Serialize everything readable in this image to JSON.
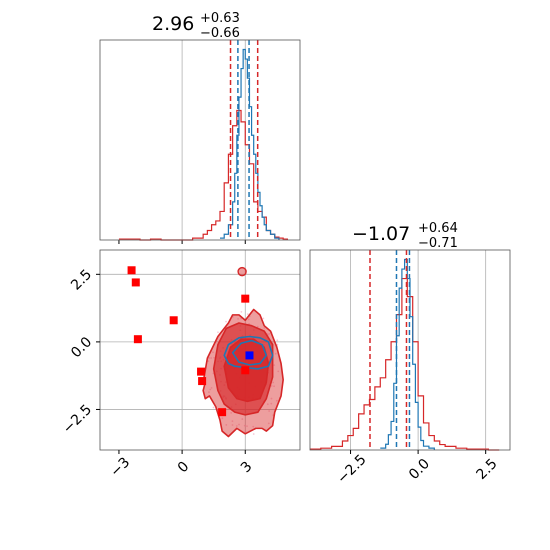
{
  "chart_data": [
    {
      "type": "histogram",
      "panel": "top-left",
      "title": {
        "value": "2.96",
        "plus": "+0.63",
        "minus": "−0.66"
      },
      "xlim": [
        -3.9,
        5.6
      ],
      "grid": true,
      "quantile_lines": [
        {
          "color": "#d62728",
          "x": [
            2.3,
            3.59
          ]
        },
        {
          "color": "#1f77b4",
          "x": [
            2.65,
            3.18
          ]
        }
      ],
      "series": [
        {
          "color": "#d62728",
          "x": [
            -3.0,
            -2.5,
            -2.0,
            -1.5,
            -1.0,
            -0.5,
            0.0,
            0.5,
            1.0,
            1.2,
            1.4,
            1.6,
            1.8,
            2.0,
            2.2,
            2.4,
            2.6,
            2.8,
            3.0,
            3.2,
            3.4,
            3.6,
            3.8,
            4.0,
            4.2,
            4.4,
            4.6,
            4.8,
            5.0
          ],
          "counts": [
            0.005,
            0.005,
            0.0,
            0.005,
            0.0,
            0.0,
            0.0,
            0.01,
            0.03,
            0.05,
            0.08,
            0.1,
            0.15,
            0.3,
            0.45,
            0.6,
            0.68,
            0.62,
            0.5,
            0.4,
            0.2,
            0.15,
            0.12,
            0.05,
            0.03,
            0.015,
            0.01,
            0.005,
            0.0
          ]
        },
        {
          "color": "#1f77b4",
          "x": [
            1.8,
            2.0,
            2.2,
            2.4,
            2.5,
            2.6,
            2.7,
            2.8,
            2.9,
            3.0,
            3.1,
            3.2,
            3.3,
            3.4,
            3.5,
            3.6,
            3.7,
            3.8,
            3.9,
            4.0,
            4.2,
            4.4,
            4.6
          ],
          "counts": [
            0.01,
            0.03,
            0.08,
            0.2,
            0.35,
            0.55,
            0.75,
            0.9,
            1.0,
            0.95,
            0.85,
            0.7,
            0.55,
            0.45,
            0.35,
            0.25,
            0.18,
            0.12,
            0.08,
            0.05,
            0.03,
            0.01,
            0.0
          ]
        }
      ]
    },
    {
      "type": "scatter",
      "panel": "bottom-left",
      "xlim": [
        -3.9,
        5.6
      ],
      "ylim": [
        -4.0,
        3.4
      ],
      "grid": true,
      "x_ticks": [
        "−3",
        "0",
        "3"
      ],
      "y_ticks": [
        "2.5",
        "0.0",
        "−2.5"
      ],
      "red_points": {
        "x": [
          -2.4,
          -2.2,
          -2.1,
          -0.4,
          0.9,
          0.95,
          1.9,
          3.0,
          3.0
        ],
        "y": [
          2.65,
          2.2,
          0.1,
          0.8,
          -1.1,
          -1.45,
          -2.6,
          1.6,
          -1.05
        ]
      },
      "blue_points": {
        "x": [
          3.2
        ],
        "y": [
          -0.5
        ]
      },
      "red_contours": [
        {
          "level": 1,
          "x": [
            1.0,
            1.2,
            1.7,
            2.2,
            2.4,
            2.7,
            3.0,
            3.4,
            3.7,
            3.9,
            4.2,
            4.5,
            4.7,
            4.8,
            4.7,
            4.4,
            4.3,
            4.0,
            3.8,
            3.5,
            3.0,
            2.6,
            2.2,
            1.9,
            1.8,
            1.6,
            1.3,
            1.1,
            1.0,
            1.1,
            1.0
          ],
          "y": [
            -1.5,
            -0.6,
            0.2,
            0.7,
            1.0,
            1.0,
            0.8,
            1.2,
            1.0,
            0.6,
            0.4,
            -0.2,
            -0.8,
            -1.4,
            -2.0,
            -2.6,
            -3.1,
            -3.3,
            -3.2,
            -3.2,
            -3.4,
            -3.2,
            -3.5,
            -3.3,
            -2.9,
            -2.4,
            -2.0,
            -2.1,
            -1.8,
            -1.5,
            -1.5
          ]
        },
        {
          "level": 2,
          "x": [
            1.5,
            1.7,
            2.1,
            2.7,
            3.3,
            3.9,
            4.3,
            4.3,
            4.0,
            3.6,
            3.0,
            2.5,
            2.0,
            1.7,
            1.5
          ],
          "y": [
            -1.0,
            -0.1,
            0.5,
            0.7,
            0.6,
            0.4,
            -0.1,
            -1.3,
            -2.1,
            -2.6,
            -2.7,
            -2.6,
            -2.3,
            -1.8,
            -1.0
          ]
        },
        {
          "level": 3,
          "x": [
            2.0,
            2.3,
            2.8,
            3.4,
            3.9,
            4.1,
            4.0,
            3.7,
            3.1,
            2.6,
            2.2,
            2.0
          ],
          "y": [
            -0.9,
            -0.2,
            0.1,
            0.1,
            -0.2,
            -0.8,
            -1.5,
            -2.1,
            -2.2,
            -2.1,
            -1.7,
            -0.9
          ]
        }
      ],
      "blue_contours": [
        {
          "level": 1,
          "x": [
            2.0,
            2.2,
            2.7,
            3.2,
            3.7,
            4.1,
            4.3,
            4.1,
            3.6,
            3.0,
            2.5,
            2.2,
            2.0
          ],
          "y": [
            -0.5,
            -0.1,
            0.15,
            0.2,
            0.15,
            0.0,
            -0.5,
            -0.9,
            -1.0,
            -0.95,
            -0.9,
            -0.8,
            -0.5
          ]
        },
        {
          "level": 2,
          "x": [
            2.4,
            2.8,
            3.3,
            3.8,
            4.0,
            3.7,
            3.2,
            2.7,
            2.4
          ],
          "y": [
            -0.4,
            -0.05,
            0.05,
            -0.1,
            -0.5,
            -0.8,
            -0.85,
            -0.75,
            -0.4
          ]
        }
      ]
    },
    {
      "type": "histogram",
      "panel": "bottom-right",
      "title": {
        "value": "−1.07",
        "plus": "+0.64",
        "minus": "−0.71"
      },
      "xlim": [
        -4.0,
        3.4
      ],
      "grid": true,
      "x_ticks": [
        "−2.5",
        "0.0",
        "2.5"
      ],
      "quantile_lines": [
        {
          "color": "#d62728",
          "x": [
            -1.78,
            -0.43
          ]
        },
        {
          "color": "#1f77b4",
          "x": [
            -0.8,
            -0.32
          ]
        }
      ],
      "series": [
        {
          "color": "#d62728",
          "x": [
            -4.0,
            -3.6,
            -3.2,
            -2.8,
            -2.6,
            -2.4,
            -2.2,
            -2.0,
            -1.8,
            -1.6,
            -1.4,
            -1.2,
            -1.0,
            -0.8,
            -0.6,
            -0.4,
            -0.2,
            0.0,
            0.2,
            0.4,
            0.6,
            0.8,
            1.0,
            1.4,
            1.8,
            2.2,
            2.6,
            3.0
          ],
          "counts": [
            0.005,
            0.01,
            0.02,
            0.05,
            0.08,
            0.12,
            0.2,
            0.25,
            0.28,
            0.35,
            0.4,
            0.5,
            0.6,
            0.75,
            0.95,
            0.85,
            0.6,
            0.3,
            0.15,
            0.08,
            0.05,
            0.03,
            0.02,
            0.01,
            0.005,
            0.005,
            0.0,
            0.0
          ]
        },
        {
          "color": "#1f77b4",
          "x": [
            -1.4,
            -1.2,
            -1.1,
            -1.0,
            -0.9,
            -0.8,
            -0.7,
            -0.6,
            -0.5,
            -0.4,
            -0.3,
            -0.2,
            -0.1,
            0.0,
            0.1,
            0.2,
            0.4,
            0.6
          ],
          "counts": [
            0.01,
            0.03,
            0.08,
            0.15,
            0.35,
            0.6,
            0.85,
            0.95,
            1.0,
            0.9,
            0.7,
            0.45,
            0.25,
            0.12,
            0.05,
            0.02,
            0.01,
            0.0
          ]
        }
      ]
    }
  ]
}
